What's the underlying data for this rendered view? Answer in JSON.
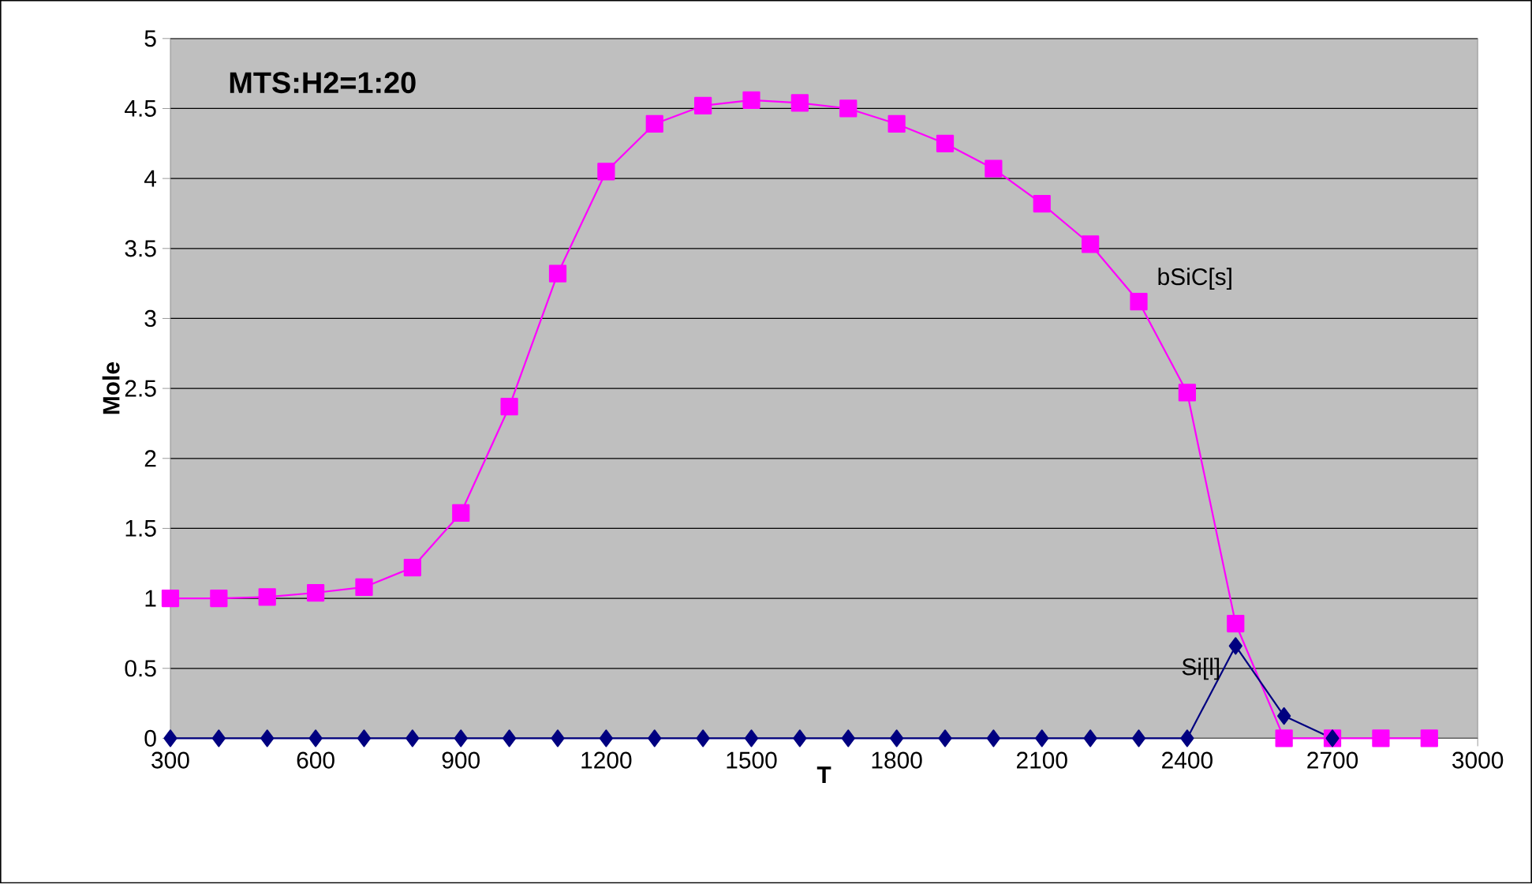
{
  "chart_data": {
    "type": "line",
    "title": "MTS:H2=1:20",
    "xlabel": "T",
    "ylabel": "Mole",
    "x": [
      300,
      400,
      500,
      600,
      700,
      800,
      900,
      1000,
      1100,
      1200,
      1300,
      1400,
      1500,
      1600,
      1700,
      1800,
      1900,
      2000,
      2100,
      2200,
      2300,
      2400,
      2500,
      2600,
      2700,
      2800,
      2900
    ],
    "series": [
      {
        "name": "bSiC[s]",
        "color": "#ff00ff",
        "marker": "square",
        "values": [
          1.0,
          1.0,
          1.01,
          1.04,
          1.08,
          1.22,
          1.61,
          2.37,
          3.32,
          4.05,
          4.39,
          4.52,
          4.56,
          4.54,
          4.5,
          4.39,
          4.25,
          4.07,
          3.82,
          3.53,
          3.12,
          2.47,
          0.82,
          0,
          0,
          0,
          0
        ]
      },
      {
        "name": "Si[l]",
        "color": "#000080",
        "marker": "diamond",
        "values": [
          0,
          0,
          0,
          0,
          0,
          0,
          0,
          0,
          0,
          0,
          0,
          0,
          0,
          0,
          0,
          0,
          0,
          0,
          0,
          0,
          0,
          0,
          0.66,
          0.16,
          0,
          null,
          null
        ]
      }
    ],
    "xlim": [
      300,
      3000
    ],
    "xticks": [
      300,
      600,
      900,
      1200,
      1500,
      1800,
      2100,
      2400,
      2700,
      3000
    ],
    "ylim": [
      0,
      5
    ],
    "yticks": [
      0,
      0.5,
      1,
      1.5,
      2,
      2.5,
      3,
      3.5,
      4,
      4.5,
      5
    ],
    "grid": "y",
    "legend": false
  }
}
